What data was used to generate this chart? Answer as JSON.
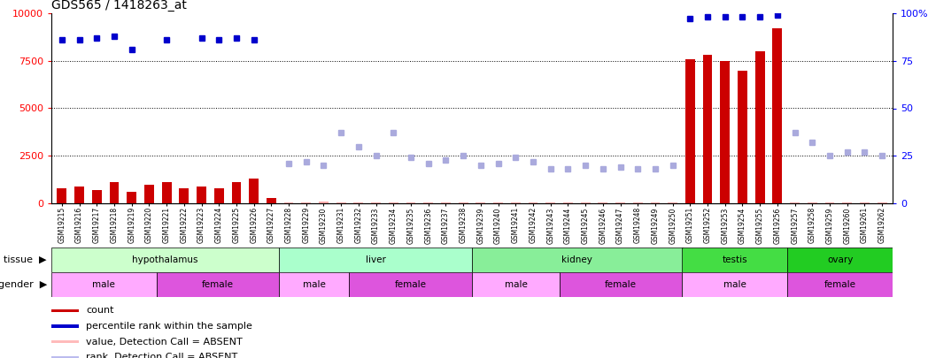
{
  "title": "GDS565 / 1418263_at",
  "samples": [
    "GSM19215",
    "GSM19216",
    "GSM19217",
    "GSM19218",
    "GSM19219",
    "GSM19220",
    "GSM19221",
    "GSM19222",
    "GSM19223",
    "GSM19224",
    "GSM19225",
    "GSM19226",
    "GSM19227",
    "GSM19228",
    "GSM19229",
    "GSM19230",
    "GSM19231",
    "GSM19232",
    "GSM19233",
    "GSM19234",
    "GSM19235",
    "GSM19236",
    "GSM19237",
    "GSM19238",
    "GSM19239",
    "GSM19240",
    "GSM19241",
    "GSM19242",
    "GSM19243",
    "GSM19244",
    "GSM19245",
    "GSM19246",
    "GSM19247",
    "GSM19248",
    "GSM19249",
    "GSM19250",
    "GSM19251",
    "GSM19252",
    "GSM19253",
    "GSM19254",
    "GSM19255",
    "GSM19256",
    "GSM19257",
    "GSM19258",
    "GSM19259",
    "GSM19260",
    "GSM19261",
    "GSM19262"
  ],
  "count_values": [
    800,
    900,
    700,
    1100,
    600,
    1000,
    1100,
    800,
    900,
    800,
    1100,
    1300,
    300,
    30,
    30,
    80,
    60,
    30,
    40,
    30,
    50,
    60,
    40,
    30,
    40,
    30,
    50,
    40,
    30,
    30,
    40,
    30,
    30,
    30,
    30,
    30,
    7600,
    7800,
    7500,
    7000,
    8000,
    9200,
    30,
    30,
    30,
    30,
    30,
    30
  ],
  "percentile_present": [
    8600,
    8600,
    8700,
    8800,
    8100,
    null,
    8600,
    null,
    8700,
    8600,
    8700,
    8600,
    null,
    null,
    null,
    null,
    null,
    null,
    null,
    null,
    null,
    null,
    null,
    null,
    null,
    null,
    null,
    null,
    null,
    null,
    null,
    null,
    null,
    null,
    null,
    null,
    9700,
    9800,
    9800,
    9800,
    9800,
    9900,
    null,
    null,
    null,
    null,
    null,
    null
  ],
  "percentile_absent": [
    null,
    null,
    null,
    null,
    null,
    null,
    null,
    null,
    null,
    null,
    null,
    null,
    null,
    2100,
    2200,
    2000,
    3700,
    3000,
    2500,
    3700,
    2400,
    2100,
    2300,
    2500,
    2000,
    2100,
    2400,
    2200,
    1800,
    1800,
    2000,
    1800,
    1900,
    1800,
    1800,
    2000,
    null,
    null,
    null,
    null,
    null,
    null,
    3700,
    3200,
    2500,
    2700,
    2700,
    2500
  ],
  "count_is_absent": [
    false,
    false,
    false,
    false,
    false,
    false,
    false,
    false,
    false,
    false,
    false,
    false,
    false,
    true,
    true,
    true,
    true,
    true,
    true,
    true,
    true,
    true,
    true,
    true,
    true,
    true,
    true,
    true,
    true,
    true,
    true,
    true,
    true,
    true,
    true,
    true,
    false,
    false,
    false,
    false,
    false,
    false,
    true,
    true,
    true,
    true,
    true,
    true
  ],
  "tissue_groups": [
    {
      "label": "hypothalamus",
      "start": 0,
      "end": 12
    },
    {
      "label": "liver",
      "start": 13,
      "end": 23
    },
    {
      "label": "kidney",
      "start": 24,
      "end": 35
    },
    {
      "label": "testis",
      "start": 36,
      "end": 41
    },
    {
      "label": "ovary",
      "start": 42,
      "end": 47
    }
  ],
  "gender_groups": [
    {
      "label": "male",
      "start": 0,
      "end": 5
    },
    {
      "label": "female",
      "start": 6,
      "end": 12
    },
    {
      "label": "male",
      "start": 13,
      "end": 16
    },
    {
      "label": "female",
      "start": 17,
      "end": 23
    },
    {
      "label": "male",
      "start": 24,
      "end": 28
    },
    {
      "label": "female",
      "start": 29,
      "end": 35
    },
    {
      "label": "male",
      "start": 36,
      "end": 41
    },
    {
      "label": "female",
      "start": 42,
      "end": 47
    }
  ],
  "tissue_colors": [
    "#ccffcc",
    "#aaffcc",
    "#88ee99",
    "#55dd55",
    "#33cc33"
  ],
  "gender_color_male": "#ffaaff",
  "gender_color_female": "#dd55dd",
  "ylim_left": [
    0,
    10000
  ],
  "yticks_left": [
    0,
    2500,
    5000,
    7500,
    10000
  ],
  "yticks_right": [
    0,
    25,
    50,
    75,
    100
  ],
  "bar_color_present": "#cc0000",
  "bar_color_absent": "#ffaaaa",
  "dot_color_present": "#0000cc",
  "dot_color_absent": "#aaaadd",
  "bg_color": "#ffffff",
  "legend_items": [
    {
      "color": "#cc0000",
      "label": "count"
    },
    {
      "color": "#0000cc",
      "label": "percentile rank within the sample"
    },
    {
      "color": "#ffbbbb",
      "label": "value, Detection Call = ABSENT"
    },
    {
      "color": "#bbbbee",
      "label": "rank, Detection Call = ABSENT"
    }
  ]
}
